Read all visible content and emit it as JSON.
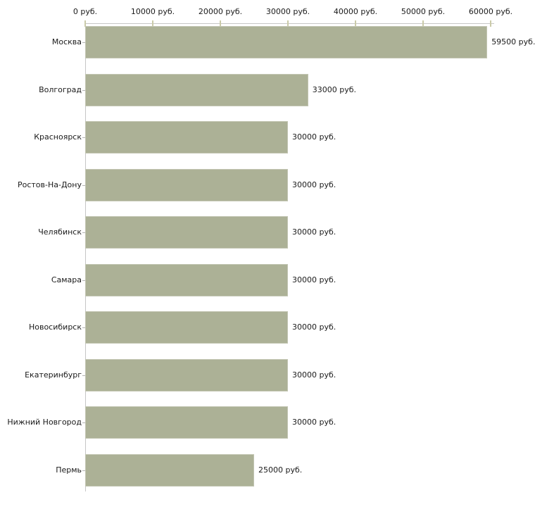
{
  "chart_data": {
    "type": "bar",
    "orientation": "horizontal",
    "title": "",
    "xlabel": "",
    "ylabel": "",
    "unit": "руб.",
    "categories": [
      "Москва",
      "Волгоград",
      "Красноярск",
      "Ростов-На-Дону",
      "Челябинск",
      "Самара",
      "Новосибирск",
      "Екатеринбург",
      "Нижний Новгород",
      "Пермь"
    ],
    "values": [
      59500,
      33000,
      30000,
      30000,
      30000,
      30000,
      30000,
      30000,
      30000,
      25000
    ],
    "value_labels": [
      "59500 руб.",
      "33000 руб.",
      "30000 руб.",
      "30000 руб.",
      "30000 руб.",
      "30000 руб.",
      "30000 руб.",
      "30000 руб.",
      "30000 руб.",
      "25000 руб."
    ],
    "x_axis": {
      "position": "top",
      "min": 0,
      "tick_values": [
        0,
        10000,
        20000,
        30000,
        40000,
        50000,
        60000
      ],
      "tick_labels": [
        "0 руб.",
        "10000 руб.",
        "20000 руб.",
        "30000 руб.",
        "40000 руб.",
        "50000 руб.",
        "60000 руб."
      ]
    },
    "legend": "none",
    "grid": "off",
    "colors": {
      "bar_fill": "#acb196",
      "axis_line": "#c6c6c6",
      "x_tick_mark": "#cbcba9",
      "category_tick_mark": "#b3b3b3",
      "text": "#1a1a1a",
      "background": "#ffffff"
    }
  }
}
